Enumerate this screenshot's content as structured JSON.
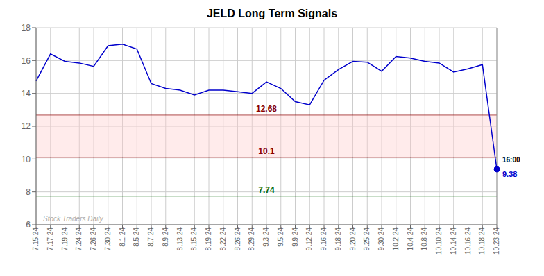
{
  "chart_data": {
    "type": "line",
    "title": "JELD Long Term Signals",
    "categories": [
      "7.15.24",
      "7.17.24",
      "7.19.24",
      "7.24.24",
      "7.26.24",
      "7.30.24",
      "8.1.24",
      "8.5.24",
      "8.7.24",
      "8.9.24",
      "8.13.24",
      "8.15.24",
      "8.19.24",
      "8.22.24",
      "8.26.24",
      "8.29.24",
      "9.3.24",
      "9.5.24",
      "9.9.24",
      "9.12.24",
      "9.16.24",
      "9.18.24",
      "9.20.24",
      "9.25.24",
      "9.30.24",
      "10.2.24",
      "10.4.24",
      "10.8.24",
      "10.10.24",
      "10.14.24",
      "10.16.24",
      "10.18.24",
      "10.23.24"
    ],
    "values": [
      14.75,
      16.4,
      15.95,
      15.85,
      15.65,
      16.9,
      17.0,
      16.7,
      14.6,
      14.3,
      14.2,
      13.9,
      14.2,
      14.2,
      14.1,
      14.0,
      14.7,
      14.3,
      13.5,
      13.3,
      14.8,
      15.45,
      15.95,
      15.9,
      15.35,
      16.25,
      16.15,
      15.95,
      15.85,
      15.3,
      15.5,
      15.75,
      9.38
    ],
    "color": "#0000cc",
    "ylim": [
      6,
      18
    ],
    "yticks": [
      6,
      8,
      10,
      12,
      14,
      16,
      18
    ],
    "grid": true,
    "hlines": [
      {
        "value": 12.68,
        "label": "12.68",
        "color": "#8b0000"
      },
      {
        "value": 10.1,
        "label": "10.1",
        "color": "#8b0000"
      },
      {
        "value": 7.74,
        "label": "7.74",
        "color": "#006600"
      }
    ],
    "band": {
      "from": 10.1,
      "to": 12.68,
      "color": "#ffcccc"
    },
    "annotations": [
      {
        "text": "16:00",
        "color": "#000000"
      },
      {
        "text": "9.38",
        "color": "#0000cc"
      },
      {
        "text": "Stock Traders Daily",
        "color": "#aaaaaa"
      }
    ]
  }
}
